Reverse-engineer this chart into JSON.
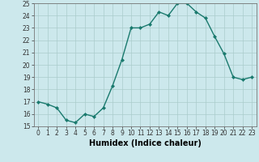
{
  "x": [
    0,
    1,
    2,
    3,
    4,
    5,
    6,
    7,
    8,
    9,
    10,
    11,
    12,
    13,
    14,
    15,
    16,
    17,
    18,
    19,
    20,
    21,
    22,
    23
  ],
  "y": [
    17.0,
    16.8,
    16.5,
    15.5,
    15.3,
    16.0,
    15.8,
    16.5,
    18.3,
    20.4,
    23.0,
    23.0,
    23.3,
    24.3,
    24.0,
    25.0,
    25.0,
    24.3,
    23.8,
    22.3,
    20.9,
    19.0,
    18.8,
    19.0
  ],
  "line_color": "#1a7a6e",
  "marker": "D",
  "marker_size": 2.0,
  "linewidth": 1.0,
  "xlabel": "Humidex (Indice chaleur)",
  "ylim": [
    15,
    25
  ],
  "xlim": [
    -0.5,
    23.5
  ],
  "yticks": [
    15,
    16,
    17,
    18,
    19,
    20,
    21,
    22,
    23,
    24,
    25
  ],
  "xticks": [
    0,
    1,
    2,
    3,
    4,
    5,
    6,
    7,
    8,
    9,
    10,
    11,
    12,
    13,
    14,
    15,
    16,
    17,
    18,
    19,
    20,
    21,
    22,
    23
  ],
  "xtick_labels": [
    "0",
    "1",
    "2",
    "3",
    "4",
    "5",
    "6",
    "7",
    "8",
    "9",
    "10",
    "11",
    "12",
    "13",
    "14",
    "15",
    "16",
    "17",
    "18",
    "19",
    "20",
    "21",
    "22",
    "23"
  ],
  "bg_color": "#cce8ec",
  "grid_color": "#aacccc",
  "tick_fontsize": 5.5,
  "label_fontsize": 7.0
}
